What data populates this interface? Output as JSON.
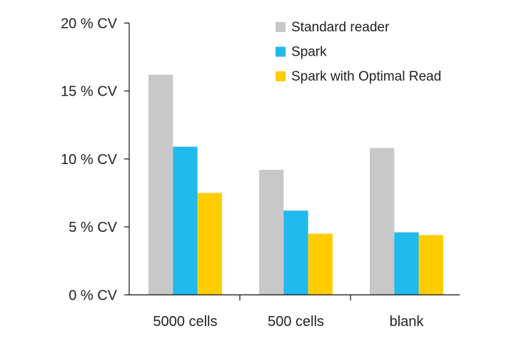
{
  "chart_data": {
    "type": "bar",
    "title": "",
    "xlabel": "",
    "ylabel": "",
    "categories": [
      "5000 cells",
      "500 cells",
      "blank"
    ],
    "series": [
      {
        "name": "Standard reader",
        "color": "#c8c8c8",
        "values": [
          16.2,
          9.2,
          10.8
        ]
      },
      {
        "name": "Spark",
        "color": "#22b9ec",
        "values": [
          10.9,
          6.2,
          4.6
        ]
      },
      {
        "name": "Spark with Optimal Read",
        "color": "#ffcc00",
        "values": [
          7.5,
          4.5,
          4.4
        ]
      }
    ],
    "ylim": [
      0,
      20
    ],
    "yticks": [
      0,
      5,
      10,
      15,
      20
    ],
    "ytick_labels": [
      "0 % CV",
      "5 % CV",
      "10 % CV",
      "15 % CV",
      "20 % CV"
    ],
    "grid": false,
    "legend_position": "top-right"
  }
}
